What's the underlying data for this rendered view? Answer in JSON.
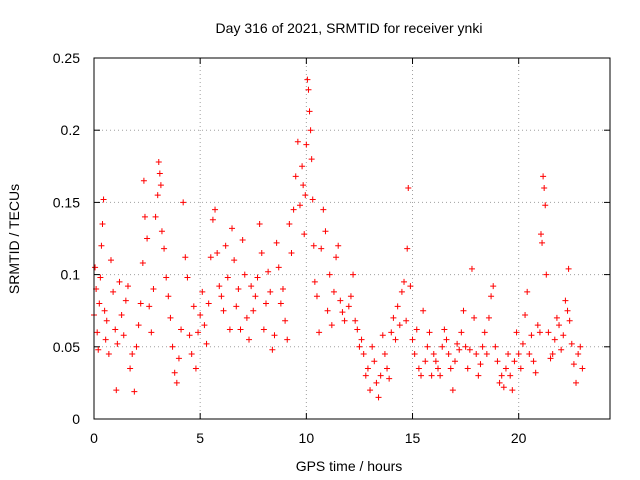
{
  "chart_data": {
    "type": "scatter",
    "title": "Day 316 of 2021, SRMTID for receiver ynki",
    "xlabel": "GPS time / hours",
    "ylabel": "SRMTID / TECUs",
    "xlim": [
      0,
      24.3
    ],
    "ylim": [
      0,
      0.25
    ],
    "xticks": [
      0,
      5,
      10,
      15,
      20
    ],
    "xtick_labels": [
      "0",
      "5",
      "10",
      "15",
      "20"
    ],
    "yticks": [
      0,
      0.05,
      0.1,
      0.15,
      0.2,
      0.25
    ],
    "ytick_labels": [
      "0",
      "0.05",
      "0.1",
      "0.15",
      "0.2",
      "0.25"
    ],
    "grid": true,
    "marker": "+",
    "color": "#ff0000",
    "series": [
      {
        "name": "SRMTID",
        "points": [
          [
            0.0,
            0.072
          ],
          [
            0.05,
            0.105
          ],
          [
            0.1,
            0.09
          ],
          [
            0.15,
            0.06
          ],
          [
            0.2,
            0.048
          ],
          [
            0.25,
            0.08
          ],
          [
            0.3,
            0.098
          ],
          [
            0.35,
            0.12
          ],
          [
            0.4,
            0.135
          ],
          [
            0.45,
            0.152
          ],
          [
            0.5,
            0.075
          ],
          [
            0.55,
            0.055
          ],
          [
            0.6,
            0.068
          ],
          [
            0.7,
            0.045
          ],
          [
            0.8,
            0.11
          ],
          [
            0.9,
            0.088
          ],
          [
            1.0,
            0.062
          ],
          [
            1.05,
            0.02
          ],
          [
            1.1,
            0.052
          ],
          [
            1.2,
            0.095
          ],
          [
            1.3,
            0.072
          ],
          [
            1.4,
            0.058
          ],
          [
            1.5,
            0.082
          ],
          [
            1.6,
            0.092
          ],
          [
            1.7,
            0.035
          ],
          [
            1.8,
            0.045
          ],
          [
            1.9,
            0.019
          ],
          [
            2.0,
            0.05
          ],
          [
            2.1,
            0.065
          ],
          [
            2.2,
            0.08
          ],
          [
            2.3,
            0.108
          ],
          [
            2.35,
            0.165
          ],
          [
            2.4,
            0.14
          ],
          [
            2.5,
            0.125
          ],
          [
            2.6,
            0.078
          ],
          [
            2.7,
            0.06
          ],
          [
            2.8,
            0.09
          ],
          [
            2.9,
            0.14
          ],
          [
            3.0,
            0.155
          ],
          [
            3.05,
            0.178
          ],
          [
            3.1,
            0.17
          ],
          [
            3.15,
            0.162
          ],
          [
            3.2,
            0.13
          ],
          [
            3.3,
            0.118
          ],
          [
            3.4,
            0.098
          ],
          [
            3.5,
            0.085
          ],
          [
            3.6,
            0.07
          ],
          [
            3.7,
            0.05
          ],
          [
            3.8,
            0.032
          ],
          [
            3.9,
            0.025
          ],
          [
            4.0,
            0.042
          ],
          [
            4.1,
            0.062
          ],
          [
            4.2,
            0.15
          ],
          [
            4.3,
            0.112
          ],
          [
            4.4,
            0.098
          ],
          [
            4.5,
            0.058
          ],
          [
            4.6,
            0.045
          ],
          [
            4.7,
            0.078
          ],
          [
            4.8,
            0.035
          ],
          [
            4.9,
            0.06
          ],
          [
            5.0,
            0.072
          ],
          [
            5.1,
            0.088
          ],
          [
            5.2,
            0.065
          ],
          [
            5.3,
            0.052
          ],
          [
            5.4,
            0.08
          ],
          [
            5.5,
            0.112
          ],
          [
            5.6,
            0.138
          ],
          [
            5.7,
            0.145
          ],
          [
            5.8,
            0.115
          ],
          [
            5.9,
            0.092
          ],
          [
            6.0,
            0.085
          ],
          [
            6.1,
            0.075
          ],
          [
            6.2,
            0.12
          ],
          [
            6.3,
            0.098
          ],
          [
            6.4,
            0.062
          ],
          [
            6.5,
            0.132
          ],
          [
            6.6,
            0.11
          ],
          [
            6.7,
            0.078
          ],
          [
            6.8,
            0.09
          ],
          [
            6.9,
            0.062
          ],
          [
            7.0,
            0.124
          ],
          [
            7.1,
            0.1
          ],
          [
            7.2,
            0.07
          ],
          [
            7.3,
            0.055
          ],
          [
            7.4,
            0.092
          ],
          [
            7.5,
            0.075
          ],
          [
            7.6,
            0.085
          ],
          [
            7.7,
            0.098
          ],
          [
            7.8,
            0.135
          ],
          [
            7.9,
            0.115
          ],
          [
            8.0,
            0.062
          ],
          [
            8.1,
            0.08
          ],
          [
            8.2,
            0.102
          ],
          [
            8.3,
            0.088
          ],
          [
            8.4,
            0.048
          ],
          [
            8.5,
            0.058
          ],
          [
            8.6,
            0.122
          ],
          [
            8.7,
            0.105
          ],
          [
            8.8,
            0.08
          ],
          [
            8.9,
            0.09
          ],
          [
            9.0,
            0.068
          ],
          [
            9.1,
            0.055
          ],
          [
            9.2,
            0.135
          ],
          [
            9.3,
            0.115
          ],
          [
            9.4,
            0.145
          ],
          [
            9.5,
            0.168
          ],
          [
            9.6,
            0.192
          ],
          [
            9.7,
            0.148
          ],
          [
            9.8,
            0.175
          ],
          [
            9.85,
            0.162
          ],
          [
            9.9,
            0.128
          ],
          [
            9.95,
            0.155
          ],
          [
            10.0,
            0.19
          ],
          [
            10.05,
            0.235
          ],
          [
            10.1,
            0.228
          ],
          [
            10.15,
            0.213
          ],
          [
            10.2,
            0.2
          ],
          [
            10.25,
            0.18
          ],
          [
            10.3,
            0.152
          ],
          [
            10.35,
            0.12
          ],
          [
            10.4,
            0.095
          ],
          [
            10.5,
            0.085
          ],
          [
            10.6,
            0.06
          ],
          [
            10.7,
            0.118
          ],
          [
            10.8,
            0.145
          ],
          [
            10.9,
            0.13
          ],
          [
            11.0,
            0.075
          ],
          [
            11.1,
            0.1
          ],
          [
            11.2,
            0.065
          ],
          [
            11.3,
            0.088
          ],
          [
            11.4,
            0.112
          ],
          [
            11.5,
            0.12
          ],
          [
            11.6,
            0.082
          ],
          [
            11.7,
            0.074
          ],
          [
            11.8,
            0.068
          ],
          [
            12.0,
            0.078
          ],
          [
            12.1,
            0.085
          ],
          [
            12.2,
            0.1
          ],
          [
            12.3,
            0.068
          ],
          [
            12.4,
            0.062
          ],
          [
            12.5,
            0.05
          ],
          [
            12.6,
            0.055
          ],
          [
            12.7,
            0.045
          ],
          [
            12.8,
            0.03
          ],
          [
            12.9,
            0.035
          ],
          [
            13.0,
            0.02
          ],
          [
            13.1,
            0.05
          ],
          [
            13.2,
            0.04
          ],
          [
            13.3,
            0.025
          ],
          [
            13.4,
            0.015
          ],
          [
            13.5,
            0.03
          ],
          [
            13.6,
            0.058
          ],
          [
            13.7,
            0.045
          ],
          [
            13.8,
            0.035
          ],
          [
            13.9,
            0.028
          ],
          [
            14.0,
            0.06
          ],
          [
            14.1,
            0.07
          ],
          [
            14.2,
            0.055
          ],
          [
            14.3,
            0.078
          ],
          [
            14.4,
            0.065
          ],
          [
            14.5,
            0.088
          ],
          [
            14.6,
            0.095
          ],
          [
            14.7,
            0.068
          ],
          [
            14.75,
            0.118
          ],
          [
            14.8,
            0.16
          ],
          [
            14.9,
            0.092
          ],
          [
            15.0,
            0.055
          ],
          [
            15.1,
            0.045
          ],
          [
            15.2,
            0.062
          ],
          [
            15.3,
            0.035
          ],
          [
            15.4,
            0.03
          ],
          [
            15.5,
            0.075
          ],
          [
            15.6,
            0.04
          ],
          [
            15.7,
            0.05
          ],
          [
            15.8,
            0.06
          ],
          [
            15.9,
            0.03
          ],
          [
            16.0,
            0.045
          ],
          [
            16.1,
            0.04
          ],
          [
            16.2,
            0.035
          ],
          [
            16.3,
            0.03
          ],
          [
            16.4,
            0.05
          ],
          [
            16.5,
            0.062
          ],
          [
            16.6,
            0.055
          ],
          [
            16.7,
            0.045
          ],
          [
            16.8,
            0.035
          ],
          [
            16.9,
            0.02
          ],
          [
            17.0,
            0.04
          ],
          [
            17.1,
            0.052
          ],
          [
            17.2,
            0.048
          ],
          [
            17.3,
            0.06
          ],
          [
            17.4,
            0.075
          ],
          [
            17.5,
            0.05
          ],
          [
            17.6,
            0.035
          ],
          [
            17.7,
            0.048
          ],
          [
            17.8,
            0.104
          ],
          [
            17.9,
            0.07
          ],
          [
            18.0,
            0.045
          ],
          [
            18.1,
            0.03
          ],
          [
            18.2,
            0.038
          ],
          [
            18.3,
            0.05
          ],
          [
            18.4,
            0.06
          ],
          [
            18.5,
            0.045
          ],
          [
            18.6,
            0.07
          ],
          [
            18.7,
            0.085
          ],
          [
            18.8,
            0.092
          ],
          [
            18.9,
            0.05
          ],
          [
            19.0,
            0.04
          ],
          [
            19.1,
            0.025
          ],
          [
            19.2,
            0.03
          ],
          [
            19.3,
            0.022
          ],
          [
            19.4,
            0.035
          ],
          [
            19.5,
            0.045
          ],
          [
            19.6,
            0.03
          ],
          [
            19.7,
            0.02
          ],
          [
            19.8,
            0.04
          ],
          [
            19.9,
            0.06
          ],
          [
            20.0,
            0.045
          ],
          [
            20.1,
            0.035
          ],
          [
            20.2,
            0.052
          ],
          [
            20.3,
            0.072
          ],
          [
            20.4,
            0.088
          ],
          [
            20.5,
            0.045
          ],
          [
            20.6,
            0.058
          ],
          [
            20.7,
            0.04
          ],
          [
            20.8,
            0.032
          ],
          [
            20.9,
            0.065
          ],
          [
            21.0,
            0.06
          ],
          [
            21.05,
            0.128
          ],
          [
            21.1,
            0.122
          ],
          [
            21.15,
            0.168
          ],
          [
            21.2,
            0.16
          ],
          [
            21.25,
            0.148
          ],
          [
            21.3,
            0.1
          ],
          [
            21.4,
            0.06
          ],
          [
            21.5,
            0.042
          ],
          [
            21.6,
            0.045
          ],
          [
            21.7,
            0.055
          ],
          [
            21.8,
            0.07
          ],
          [
            21.9,
            0.065
          ],
          [
            22.0,
            0.048
          ],
          [
            22.1,
            0.058
          ],
          [
            22.2,
            0.082
          ],
          [
            22.3,
            0.075
          ],
          [
            22.35,
            0.104
          ],
          [
            22.4,
            0.068
          ],
          [
            22.5,
            0.052
          ],
          [
            22.6,
            0.038
          ],
          [
            22.7,
            0.025
          ],
          [
            22.8,
            0.045
          ],
          [
            22.9,
            0.05
          ],
          [
            23.0,
            0.035
          ]
        ]
      }
    ]
  }
}
